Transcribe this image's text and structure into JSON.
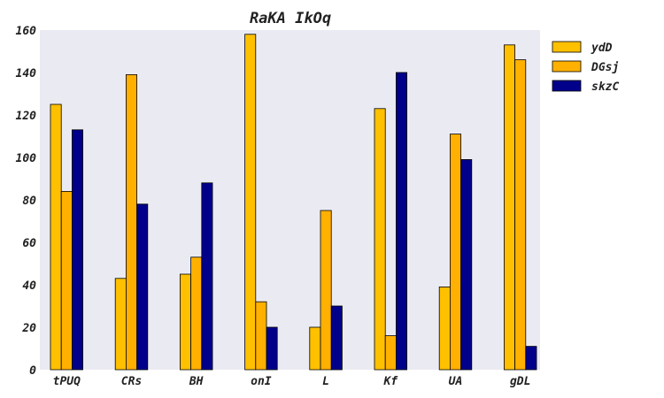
{
  "chart_data": {
    "type": "bar",
    "title": "RaKA IkOq",
    "xlabel": "",
    "ylabel": "",
    "categories": [
      "tPUQ",
      "CRs",
      "BH",
      "onI",
      "L",
      "Kf",
      "UA",
      "gDL"
    ],
    "series": [
      {
        "name": "ydD",
        "color": "#ffc000",
        "values": [
          125,
          43,
          45,
          158,
          20,
          123,
          39,
          153
        ]
      },
      {
        "name": "DGsj",
        "color": "#ffb000",
        "values": [
          84,
          139,
          53,
          32,
          75,
          16,
          111,
          146
        ]
      },
      {
        "name": "skzC",
        "color": "#00008b",
        "values": [
          113,
          78,
          88,
          20,
          30,
          140,
          99,
          11
        ]
      }
    ],
    "ylim": [
      0,
      160
    ],
    "yticks": [
      0,
      20,
      40,
      60,
      80,
      100,
      120,
      140,
      160
    ],
    "grid": false,
    "legend_position": "top-right",
    "background": "#eaeaf2"
  }
}
